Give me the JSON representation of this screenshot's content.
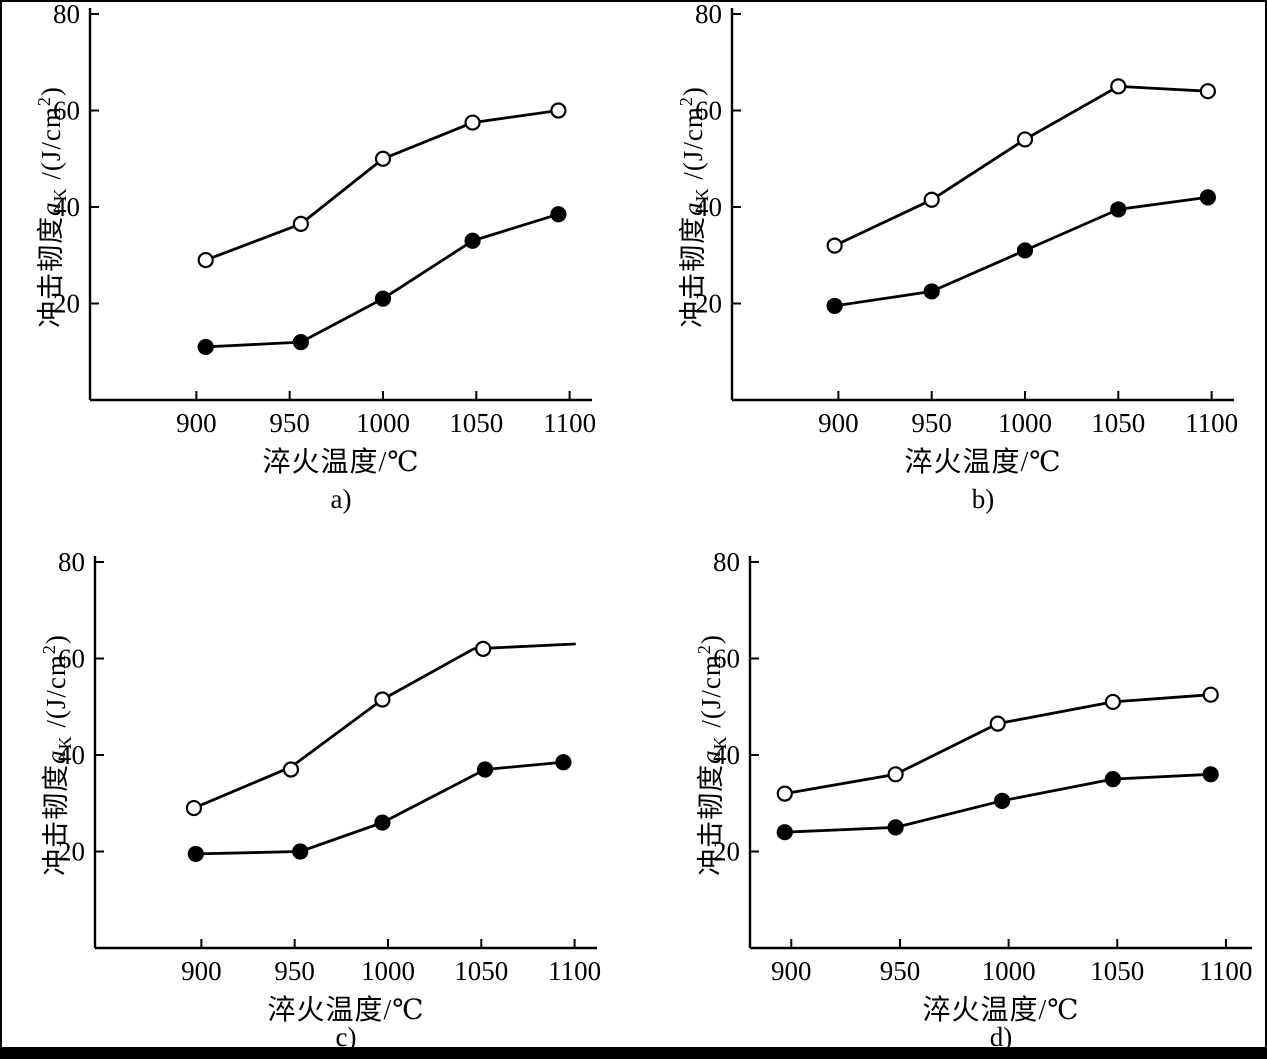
{
  "figure": {
    "ylabel_parts": {
      "prefix": "冲击韧度",
      "symbol": "a",
      "subscript": "K",
      "mid": " /(J/cm",
      "sup": "2",
      "end": ")"
    },
    "xlabel": "淬火温度/℃",
    "background": "#ffffff",
    "line_color": "#000000"
  },
  "chart_data": [
    {
      "id": "a",
      "type": "line",
      "caption": "a)",
      "xlabel": "淬火温度/℃",
      "ylabel": "冲击韧度aK /(J/cm²)",
      "xlim": [
        843,
        1112
      ],
      "ylim": [
        0,
        80
      ],
      "xticks": [
        900,
        950,
        1000,
        1050,
        1100
      ],
      "yticks": [
        20,
        40,
        60,
        80
      ],
      "grid": false,
      "legend": "none",
      "series": [
        {
          "name": "open-circles",
          "marker": "open",
          "x": [
            905,
            956,
            1000,
            1048,
            1094
          ],
          "y": [
            29,
            36.5,
            50,
            57.5,
            60
          ]
        },
        {
          "name": "solid-circles",
          "marker": "filled",
          "x": [
            905,
            956,
            1000,
            1048,
            1094
          ],
          "y": [
            11,
            12,
            21,
            33,
            38.5
          ]
        }
      ]
    },
    {
      "id": "b",
      "type": "line",
      "caption": "b)",
      "xlabel": "淬火温度/℃",
      "ylabel": "冲击韧度aK /(J/cm²)",
      "xlim": [
        843,
        1112
      ],
      "ylim": [
        0,
        80
      ],
      "xticks": [
        900,
        950,
        1000,
        1050,
        1100
      ],
      "yticks": [
        20,
        40,
        60,
        80
      ],
      "grid": false,
      "legend": "none",
      "series": [
        {
          "name": "open-circles",
          "marker": "open",
          "x": [
            898,
            950,
            1000,
            1050,
            1098
          ],
          "y": [
            32,
            41.5,
            54,
            65,
            64
          ]
        },
        {
          "name": "solid-circles",
          "marker": "filled",
          "x": [
            898,
            950,
            1000,
            1050,
            1098
          ],
          "y": [
            19.5,
            22.5,
            31,
            39.5,
            42
          ]
        }
      ]
    },
    {
      "id": "c",
      "type": "line",
      "caption": "c)",
      "xlabel": "淬火温度/℃",
      "ylabel": "冲击韧度aK /(J/cm²)",
      "xlim": [
        843,
        1112
      ],
      "ylim": [
        0,
        80
      ],
      "xticks": [
        900,
        950,
        1000,
        1050,
        1100
      ],
      "yticks": [
        20,
        40,
        60,
        80
      ],
      "grid": false,
      "legend": "none",
      "series": [
        {
          "name": "open-circles",
          "marker": "open",
          "x": [
            896,
            948,
            997,
            1051
          ],
          "y": [
            29,
            37,
            51.5,
            62
          ],
          "line_x": [
            896,
            948,
            997,
            1046,
            1100
          ],
          "line_y": [
            29,
            37.5,
            51.5,
            62,
            63
          ]
        },
        {
          "name": "solid-circles",
          "marker": "filled",
          "x": [
            897,
            953,
            997,
            1052,
            1094
          ],
          "y": [
            19.5,
            20,
            26,
            37,
            38.5
          ]
        }
      ]
    },
    {
      "id": "d",
      "type": "line",
      "caption": "d)",
      "xlabel": "淬火温度/℃",
      "ylabel": "冲击韧度aK /(J/cm²)",
      "xlim": [
        881,
        1112
      ],
      "ylim": [
        0,
        80
      ],
      "xticks": [
        900,
        950,
        1000,
        1050,
        1100
      ],
      "yticks": [
        20,
        40,
        60,
        80
      ],
      "grid": false,
      "legend": "none",
      "series": [
        {
          "name": "open-circles",
          "marker": "open",
          "x": [
            897,
            948,
            995,
            1048,
            1093
          ],
          "y": [
            32,
            36,
            46.5,
            51,
            52.5
          ]
        },
        {
          "name": "solid-circles",
          "marker": "filled",
          "x": [
            897,
            948,
            997,
            1048,
            1093
          ],
          "y": [
            24,
            25,
            30.5,
            35,
            36
          ]
        }
      ]
    }
  ]
}
